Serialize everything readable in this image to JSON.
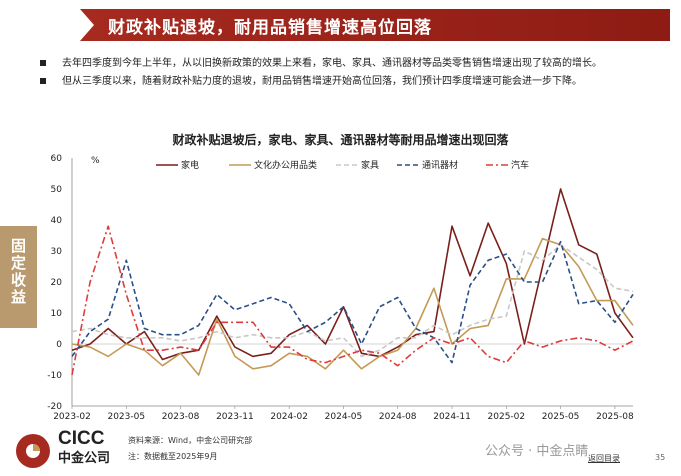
{
  "header": {
    "title": "财政补贴退坡，耐用品销售增速高位回落"
  },
  "bullets": [
    "去年四季度到今年上半年，从以旧换新政策的效果上来看，家电、家具、通讯器材等品类零售销售增速出现了较高的增长。",
    "但从三季度以来，随着财政补贴力度的退坡，耐用品销售增速开始高位回落，我们预计四季度增速可能会进一步下降。"
  ],
  "side_tab": {
    "label": "固定收益"
  },
  "colors": {
    "header": "#9b2219",
    "side_tab": "#b89a6e"
  },
  "chart_data": {
    "type": "line",
    "title": "财政补贴退坡后，家电、家具、通讯器材等耐用品增速出现回落",
    "unit": "%",
    "ylim": [
      -20,
      60
    ],
    "yticks": [
      -20,
      -10,
      0,
      10,
      20,
      30,
      40,
      50,
      60
    ],
    "xtick_labels": [
      "2023-02",
      "2023-05",
      "2023-08",
      "2023-11",
      "2024-02",
      "2024-05",
      "2024-08",
      "2024-11",
      "2025-02",
      "2025-05",
      "2025-08"
    ],
    "months": [
      "2023-02",
      "2023-03",
      "2023-04",
      "2023-05",
      "2023-06",
      "2023-07",
      "2023-08",
      "2023-09",
      "2023-10",
      "2023-11",
      "2023-12",
      "2024-01",
      "2024-02",
      "2024-03",
      "2024-04",
      "2024-05",
      "2024-06",
      "2024-07",
      "2024-08",
      "2024-09",
      "2024-10",
      "2024-11",
      "2024-12",
      "2025-01",
      "2025-02",
      "2025-03",
      "2025-04",
      "2025-05",
      "2025-06",
      "2025-07",
      "2025-08",
      "2025-09"
    ],
    "grid": false,
    "legend_position": "top",
    "series": [
      {
        "name": "家电",
        "color": "#7a1f1a",
        "dash": "solid",
        "values": [
          -2,
          0,
          5,
          0,
          4,
          -5,
          -3,
          -2,
          9,
          -1,
          -4,
          -3,
          3,
          6,
          0,
          12,
          -3,
          -4,
          -1,
          3,
          4,
          38,
          22,
          39,
          26,
          0,
          25,
          50,
          32,
          29,
          10,
          2
        ]
      },
      {
        "name": "文化办公用品类",
        "color": "#c49a54",
        "dash": "solid",
        "values": [
          0,
          -1,
          -4,
          0,
          -2,
          -7,
          -3,
          -10,
          8,
          -4,
          -8,
          -7,
          -3,
          -4,
          -8,
          -2,
          -8,
          -4,
          -2,
          5,
          18,
          0,
          5,
          6,
          21,
          21,
          34,
          32,
          25,
          14,
          14,
          6
        ]
      },
      {
        "name": "家具",
        "color": "#c8c8c8",
        "dash": "dash",
        "values": [
          4,
          5,
          3,
          2,
          2,
          2,
          1,
          2,
          4,
          2,
          3,
          2,
          2,
          4,
          1,
          2,
          -4,
          -2,
          2,
          2,
          6,
          3,
          6,
          8,
          9,
          30,
          27,
          32,
          28,
          24,
          18,
          17
        ]
      },
      {
        "name": "通讯器材",
        "color": "#2b4f86",
        "dash": "dash",
        "values": [
          -4,
          4,
          8,
          27,
          5,
          3,
          3,
          6,
          16,
          11,
          13,
          15,
          13,
          4,
          7,
          12,
          0,
          12,
          15,
          5,
          2,
          -6,
          19,
          27,
          29,
          20,
          20,
          33,
          13,
          14,
          7,
          16
        ]
      },
      {
        "name": "汽车",
        "color": "#e03b3b",
        "dash": "dashdot",
        "values": [
          -10,
          20,
          38,
          16,
          -2,
          -2,
          -1,
          -2,
          7,
          7,
          7,
          -1,
          -1,
          -5,
          -6,
          -4,
          -2,
          -3,
          -7,
          -2,
          2,
          0,
          2,
          -4,
          -6,
          1,
          -1,
          1,
          2,
          1,
          -2,
          1
        ]
      }
    ]
  },
  "footer": {
    "logo_main": "CICC",
    "logo_sub": "中金公司",
    "source": "资料来源：Wind，中金公司研究部",
    "note": "注：数据截至2025年9月",
    "watermark": "公众号 · 中金点睛",
    "back": "返回目录",
    "page": "35"
  }
}
